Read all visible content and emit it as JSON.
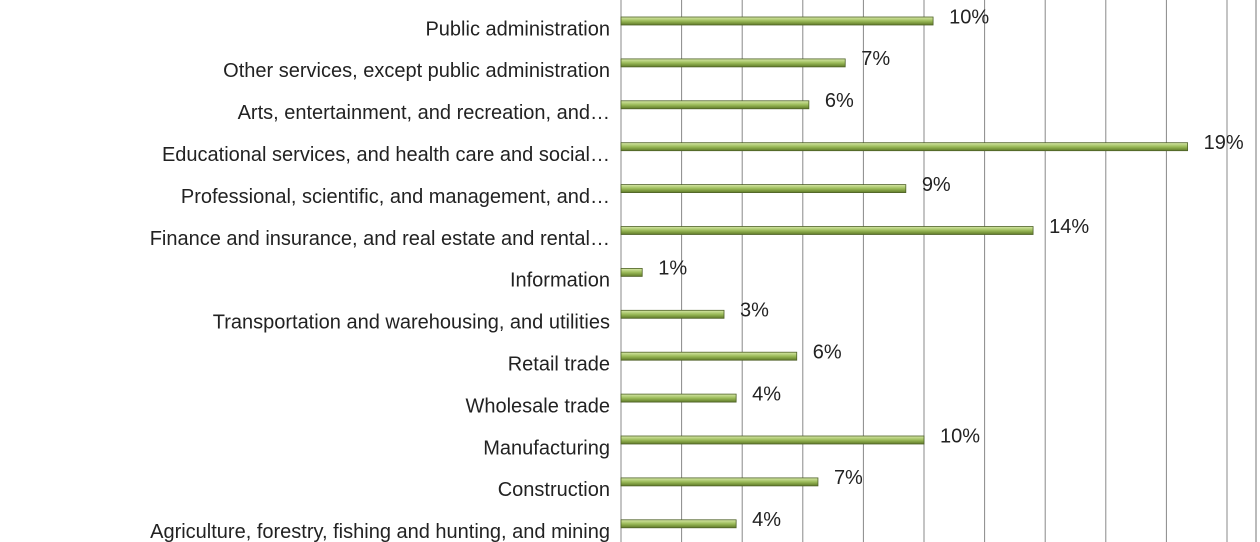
{
  "chart_data": {
    "type": "barh",
    "categories": [
      "Public administration",
      "Other services, except public administration",
      "Arts, entertainment, and recreation, and…",
      "Educational services, and health care and social…",
      "Professional, scientific, and management, and…",
      "Finance and insurance, and real estate and rental…",
      "Information",
      "Transportation and warehousing, and utilities",
      "Retail trade",
      "Wholesale trade",
      "Manufacturing",
      "Construction",
      "Agriculture, forestry, fishing and hunting, and mining"
    ],
    "values": [
      10.3,
      7.4,
      6.2,
      18.7,
      9.4,
      13.6,
      0.7,
      3.4,
      5.8,
      3.8,
      10.0,
      6.5,
      3.8
    ],
    "value_labels": [
      "10%",
      "7%",
      "6%",
      "19%",
      "9%",
      "14%",
      "1%",
      "3%",
      "6%",
      "4%",
      "10%",
      "7%",
      "4%"
    ],
    "color": "#9bbb59",
    "xlim": [
      0,
      20
    ],
    "xticks": [
      0,
      2,
      4,
      6,
      8,
      10,
      12,
      14,
      16,
      18,
      20
    ],
    "grid": true
  }
}
